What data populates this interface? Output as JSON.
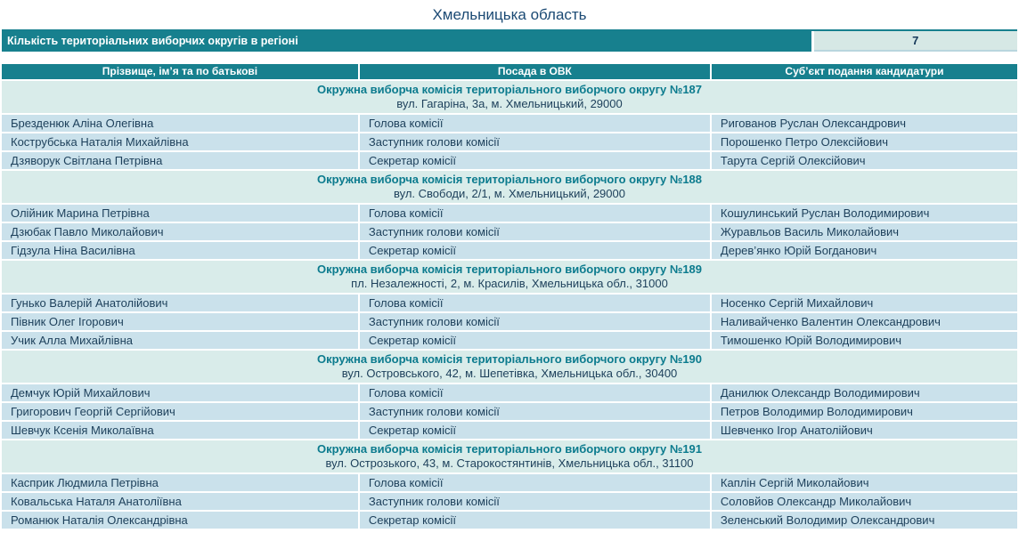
{
  "page_title": "Хмельницька область",
  "summary": {
    "label": "Кількість територіальних виборчих округів в регіоні",
    "value": "7"
  },
  "table": {
    "columns": [
      "Прізвище, ім’я та по батькові",
      "Посада в ОВК",
      "Суб’єкт подання кандидатури"
    ],
    "groups": [
      {
        "title": "Окружна виборча комісія територіального виборчого округу №187",
        "address": "вул. Гагаріна, 3а, м. Хмельницький, 29000",
        "rows": [
          [
            "Брезденюк Аліна Олегівна",
            "Голова комісії",
            "Ригованов Руслан Олександрович"
          ],
          [
            "Кострубська Наталія Михайлівна",
            "Заступник голови комісії",
            "Порошенко Петро Олексійович"
          ],
          [
            "Дзяворук Світлана Петрівна",
            "Секретар комісії",
            "Тарута Сергій Олексійович"
          ]
        ]
      },
      {
        "title": "Окружна виборча комісія територіального виборчого округу №188",
        "address": "вул. Свободи, 2/1, м. Хмельницький, 29000",
        "rows": [
          [
            "Олійник Марина Петрівна",
            "Голова комісії",
            "Кошулинський Руслан Володимирович"
          ],
          [
            "Дзюбак Павло Миколайович",
            "Заступник голови комісії",
            "Журавльов Василь Миколайович"
          ],
          [
            "Гідзула Ніна Василівна",
            "Секретар комісії",
            "Дерев’янко Юрій Богданович"
          ]
        ]
      },
      {
        "title": "Окружна виборча комісія територіального виборчого округу №189",
        "address": "пл. Незалежності, 2, м. Красилів, Хмельницька обл., 31000",
        "rows": [
          [
            "Гунько Валерій Анатолійович",
            "Голова комісії",
            "Носенко Сергій Михайлович"
          ],
          [
            "Півник Олег Ігорович",
            "Заступник голови комісії",
            "Наливайченко Валентин Олександрович"
          ],
          [
            "Учик Алла Михайлівна",
            "Секретар комісії",
            "Тимошенко Юрій Володимирович"
          ]
        ]
      },
      {
        "title": "Окружна виборча комісія територіального виборчого округу №190",
        "address": "вул. Островського, 42, м. Шепетівка, Хмельницька обл., 30400",
        "rows": [
          [
            "Демчук Юрій Михайлович",
            "Голова комісії",
            "Данилюк Олександр Володимирович"
          ],
          [
            "Григорович Георгій Сергійович",
            "Заступник голови комісії",
            "Петров Володимир Володимирович"
          ],
          [
            "Шевчук Ксенія Миколаївна",
            "Секретар комісії",
            "Шевченко Ігор Анатолійович"
          ]
        ]
      },
      {
        "title": "Окружна виборча комісія територіального виборчого округу №191",
        "address": "вул. Острозького, 43, м. Старокостянтинів, Хмельницька обл., 31100",
        "rows": [
          [
            "Касприк Людмила Петрівна",
            "Голова комісії",
            "Каплін Сергій Миколайович"
          ],
          [
            "Ковальська Наталя Анатоліївна",
            "Заступник голови комісії",
            "Соловйов Олександр Миколайович"
          ],
          [
            "Романюк Наталія Олександрівна",
            "Секретар комісії",
            "Зеленський Володимир Олександрович"
          ]
        ]
      }
    ]
  },
  "colors": {
    "teal_header": "#17808e",
    "row_background": "#cae1eb",
    "group_background": "#d9ecea",
    "value_cell_background": "#d6e8e5",
    "dark_text": "#1c3f5a",
    "group_title_text": "#0c7b8e",
    "page_title_text": "#1b4a74"
  }
}
